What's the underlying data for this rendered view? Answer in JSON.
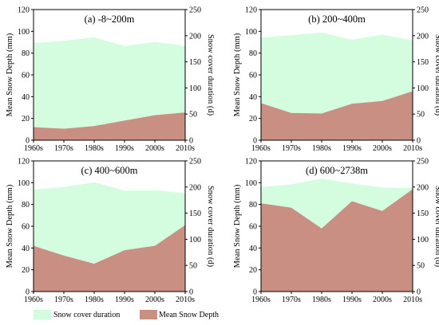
{
  "legend": {
    "duration_label": "Snow cover duration",
    "depth_label": "Mean Snow Depth"
  },
  "colors": {
    "duration_fill": "#d4fcdf",
    "depth_fill": "#c98f83"
  },
  "chart_data": [
    {
      "type": "area",
      "title": "(a) -8~200m",
      "categories": [
        "1960s",
        "1970s",
        "1980s",
        "1990s",
        "2000s",
        "2010s"
      ],
      "ylabel_left": "Mean Snow Depth (mm)",
      "ylabel_right": "Snow cover duration (d)",
      "ylim_left": [
        0,
        120
      ],
      "yticks_left": [
        0,
        20,
        40,
        60,
        80,
        100,
        120
      ],
      "ylim_right": [
        0,
        250
      ],
      "yticks_right": [
        0,
        50,
        100,
        150,
        200,
        250
      ],
      "series": [
        {
          "name": "Snow cover duration",
          "axis": "right",
          "values": [
            186,
            190,
            197,
            180,
            188,
            180
          ]
        },
        {
          "name": "Mean Snow Depth",
          "axis": "left",
          "values": [
            12,
            10.5,
            13,
            18,
            23,
            25.5
          ]
        }
      ],
      "grid": false,
      "legend_position": "bottom"
    },
    {
      "type": "area",
      "title": "(b) 200~400m",
      "categories": [
        "1960s",
        "1970s",
        "1980s",
        "1990s",
        "2000s",
        "2010s"
      ],
      "ylabel_left": "Mean Snow Depth (mm)",
      "ylabel_right": "Snow cover duration (d)",
      "ylim_left": [
        0,
        120
      ],
      "yticks_left": [
        0,
        20,
        40,
        60,
        80,
        100,
        120
      ],
      "ylim_right": [
        0,
        250
      ],
      "yticks_right": [
        0,
        50,
        100,
        150,
        200,
        250
      ],
      "series": [
        {
          "name": "Snow cover duration",
          "axis": "right",
          "values": [
            196,
            201,
            206,
            192,
            202,
            191
          ]
        },
        {
          "name": "Mean Snow Depth",
          "axis": "left",
          "values": [
            34,
            25,
            24.5,
            33.5,
            36,
            45
          ]
        }
      ],
      "grid": false,
      "legend_position": "bottom"
    },
    {
      "type": "area",
      "title": "(c) 400~600m",
      "categories": [
        "1960s",
        "1970s",
        "1980s",
        "1990s",
        "2000s",
        "2010s"
      ],
      "ylabel_left": "Mean Snow Depth (mm)",
      "ylabel_right": "Snow cover duration (d)",
      "ylim_left": [
        0,
        120
      ],
      "yticks_left": [
        0,
        20,
        40,
        60,
        80,
        100,
        120
      ],
      "ylim_right": [
        0,
        250
      ],
      "yticks_right": [
        0,
        50,
        100,
        150,
        200,
        250
      ],
      "series": [
        {
          "name": "Snow cover duration",
          "axis": "right",
          "values": [
            195,
            200,
            209,
            193,
            194,
            188
          ]
        },
        {
          "name": "Mean Snow Depth",
          "axis": "left",
          "values": [
            42,
            33,
            25.5,
            38,
            42,
            61
          ]
        }
      ],
      "grid": false,
      "legend_position": "bottom"
    },
    {
      "type": "area",
      "title": "(d) 600~2738m",
      "categories": [
        "1960s",
        "1970s",
        "1980s",
        "1990s",
        "2000s",
        "2010s"
      ],
      "ylabel_left": "Mean Snow Depth (mm)",
      "ylabel_right": "Snow cover duration (d)",
      "ylim_left": [
        0,
        120
      ],
      "yticks_left": [
        0,
        20,
        40,
        60,
        80,
        100,
        120
      ],
      "ylim_right": [
        0,
        250
      ],
      "yticks_right": [
        0,
        50,
        100,
        150,
        200,
        250
      ],
      "series": [
        {
          "name": "Snow cover duration",
          "axis": "right",
          "values": [
            200,
            205,
            216,
            207,
            199,
            198
          ]
        },
        {
          "name": "Mean Snow Depth",
          "axis": "left",
          "values": [
            81,
            77,
            58,
            83,
            74,
            94
          ]
        }
      ],
      "grid": false,
      "legend_position": "bottom"
    }
  ]
}
